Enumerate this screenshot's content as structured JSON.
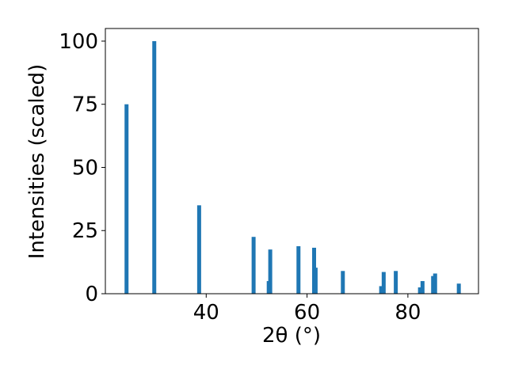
{
  "chart_data": {
    "type": "bar",
    "x": [
      24.2,
      29.7,
      38.6,
      49.4,
      52.4,
      52.7,
      58.3,
      61.4,
      61.7,
      67.1,
      74.7,
      75.2,
      77.6,
      82.4,
      82.9,
      85.0,
      85.4,
      90.1
    ],
    "values": [
      75,
      100,
      35,
      22.5,
      5,
      17.5,
      18.8,
      18.2,
      10.3,
      9,
      3,
      8.6,
      9,
      2.5,
      5,
      7,
      8,
      4
    ],
    "color": "#1f77b4",
    "xlim": [
      20,
      94
    ],
    "xticks": [
      40,
      60,
      80
    ],
    "ylim": [
      0,
      105
    ],
    "yticks": [
      0,
      25,
      50,
      75,
      100
    ],
    "xlabel": "2θ (°)",
    "ylabel": "Intensities (scaled)",
    "grid": false
  }
}
